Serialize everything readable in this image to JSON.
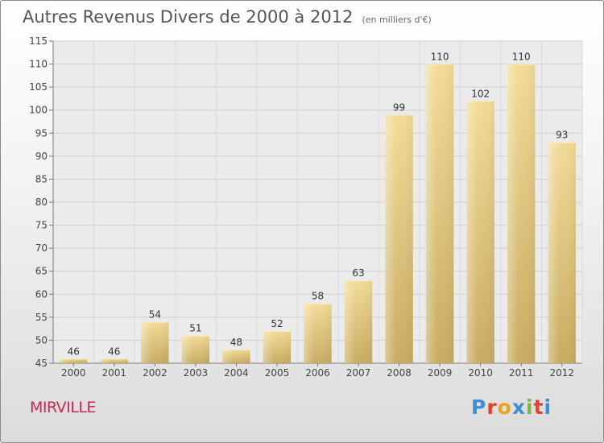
{
  "header": {
    "title": "Autres Revenus Divers de 2000 à 2012",
    "subtitle": "(en milliers d'€)"
  },
  "footer": {
    "place": "MIRVILLE",
    "logo_letters": [
      "P",
      "r",
      "o",
      "x",
      "i",
      "t",
      "i"
    ],
    "logo_colors": [
      "#3a8fd6",
      "#e0432f",
      "#f0a020",
      "#3a8fd6",
      "#7bb83a",
      "#e0432f",
      "#3a8fd6"
    ]
  },
  "chart_data": {
    "type": "bar",
    "title": "Autres Revenus Divers de 2000 à 2012",
    "subtitle": "(en milliers d'€)",
    "categories": [
      "2000",
      "2001",
      "2002",
      "2003",
      "2004",
      "2005",
      "2006",
      "2007",
      "2008",
      "2009",
      "2010",
      "2011",
      "2012"
    ],
    "values": [
      46,
      46,
      54,
      51,
      48,
      52,
      58,
      63,
      99,
      110,
      102,
      110,
      93
    ],
    "ylim": [
      45,
      115
    ],
    "yticks": [
      45,
      50,
      55,
      60,
      65,
      70,
      75,
      80,
      85,
      90,
      95,
      100,
      105,
      110,
      115
    ],
    "grid": true,
    "bar_color": "#e8cf8a"
  }
}
